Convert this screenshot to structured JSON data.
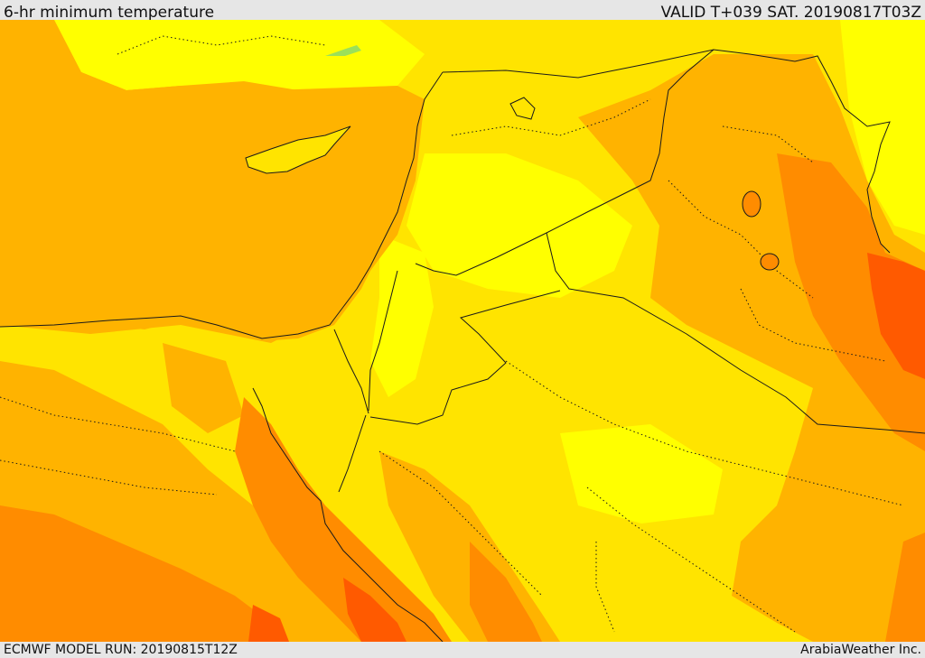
{
  "header": {
    "title": "6-hr minimum temperature",
    "valid_time": "VALID T+039 SAT. 20190817T03Z"
  },
  "footer": {
    "model_run": "ECMWF MODEL RUN: 20190815T12Z",
    "credit": "ArabiaWeather Inc."
  },
  "colors": {
    "pale_yellow": "#ffff00",
    "light_yellow": "#ffe400",
    "yellow_orange": "#ffb300",
    "orange": "#ff8c00",
    "dark_orange": "#ff5a00",
    "green_trace": "#9be05a",
    "border_line": "#1a1a1a"
  }
}
